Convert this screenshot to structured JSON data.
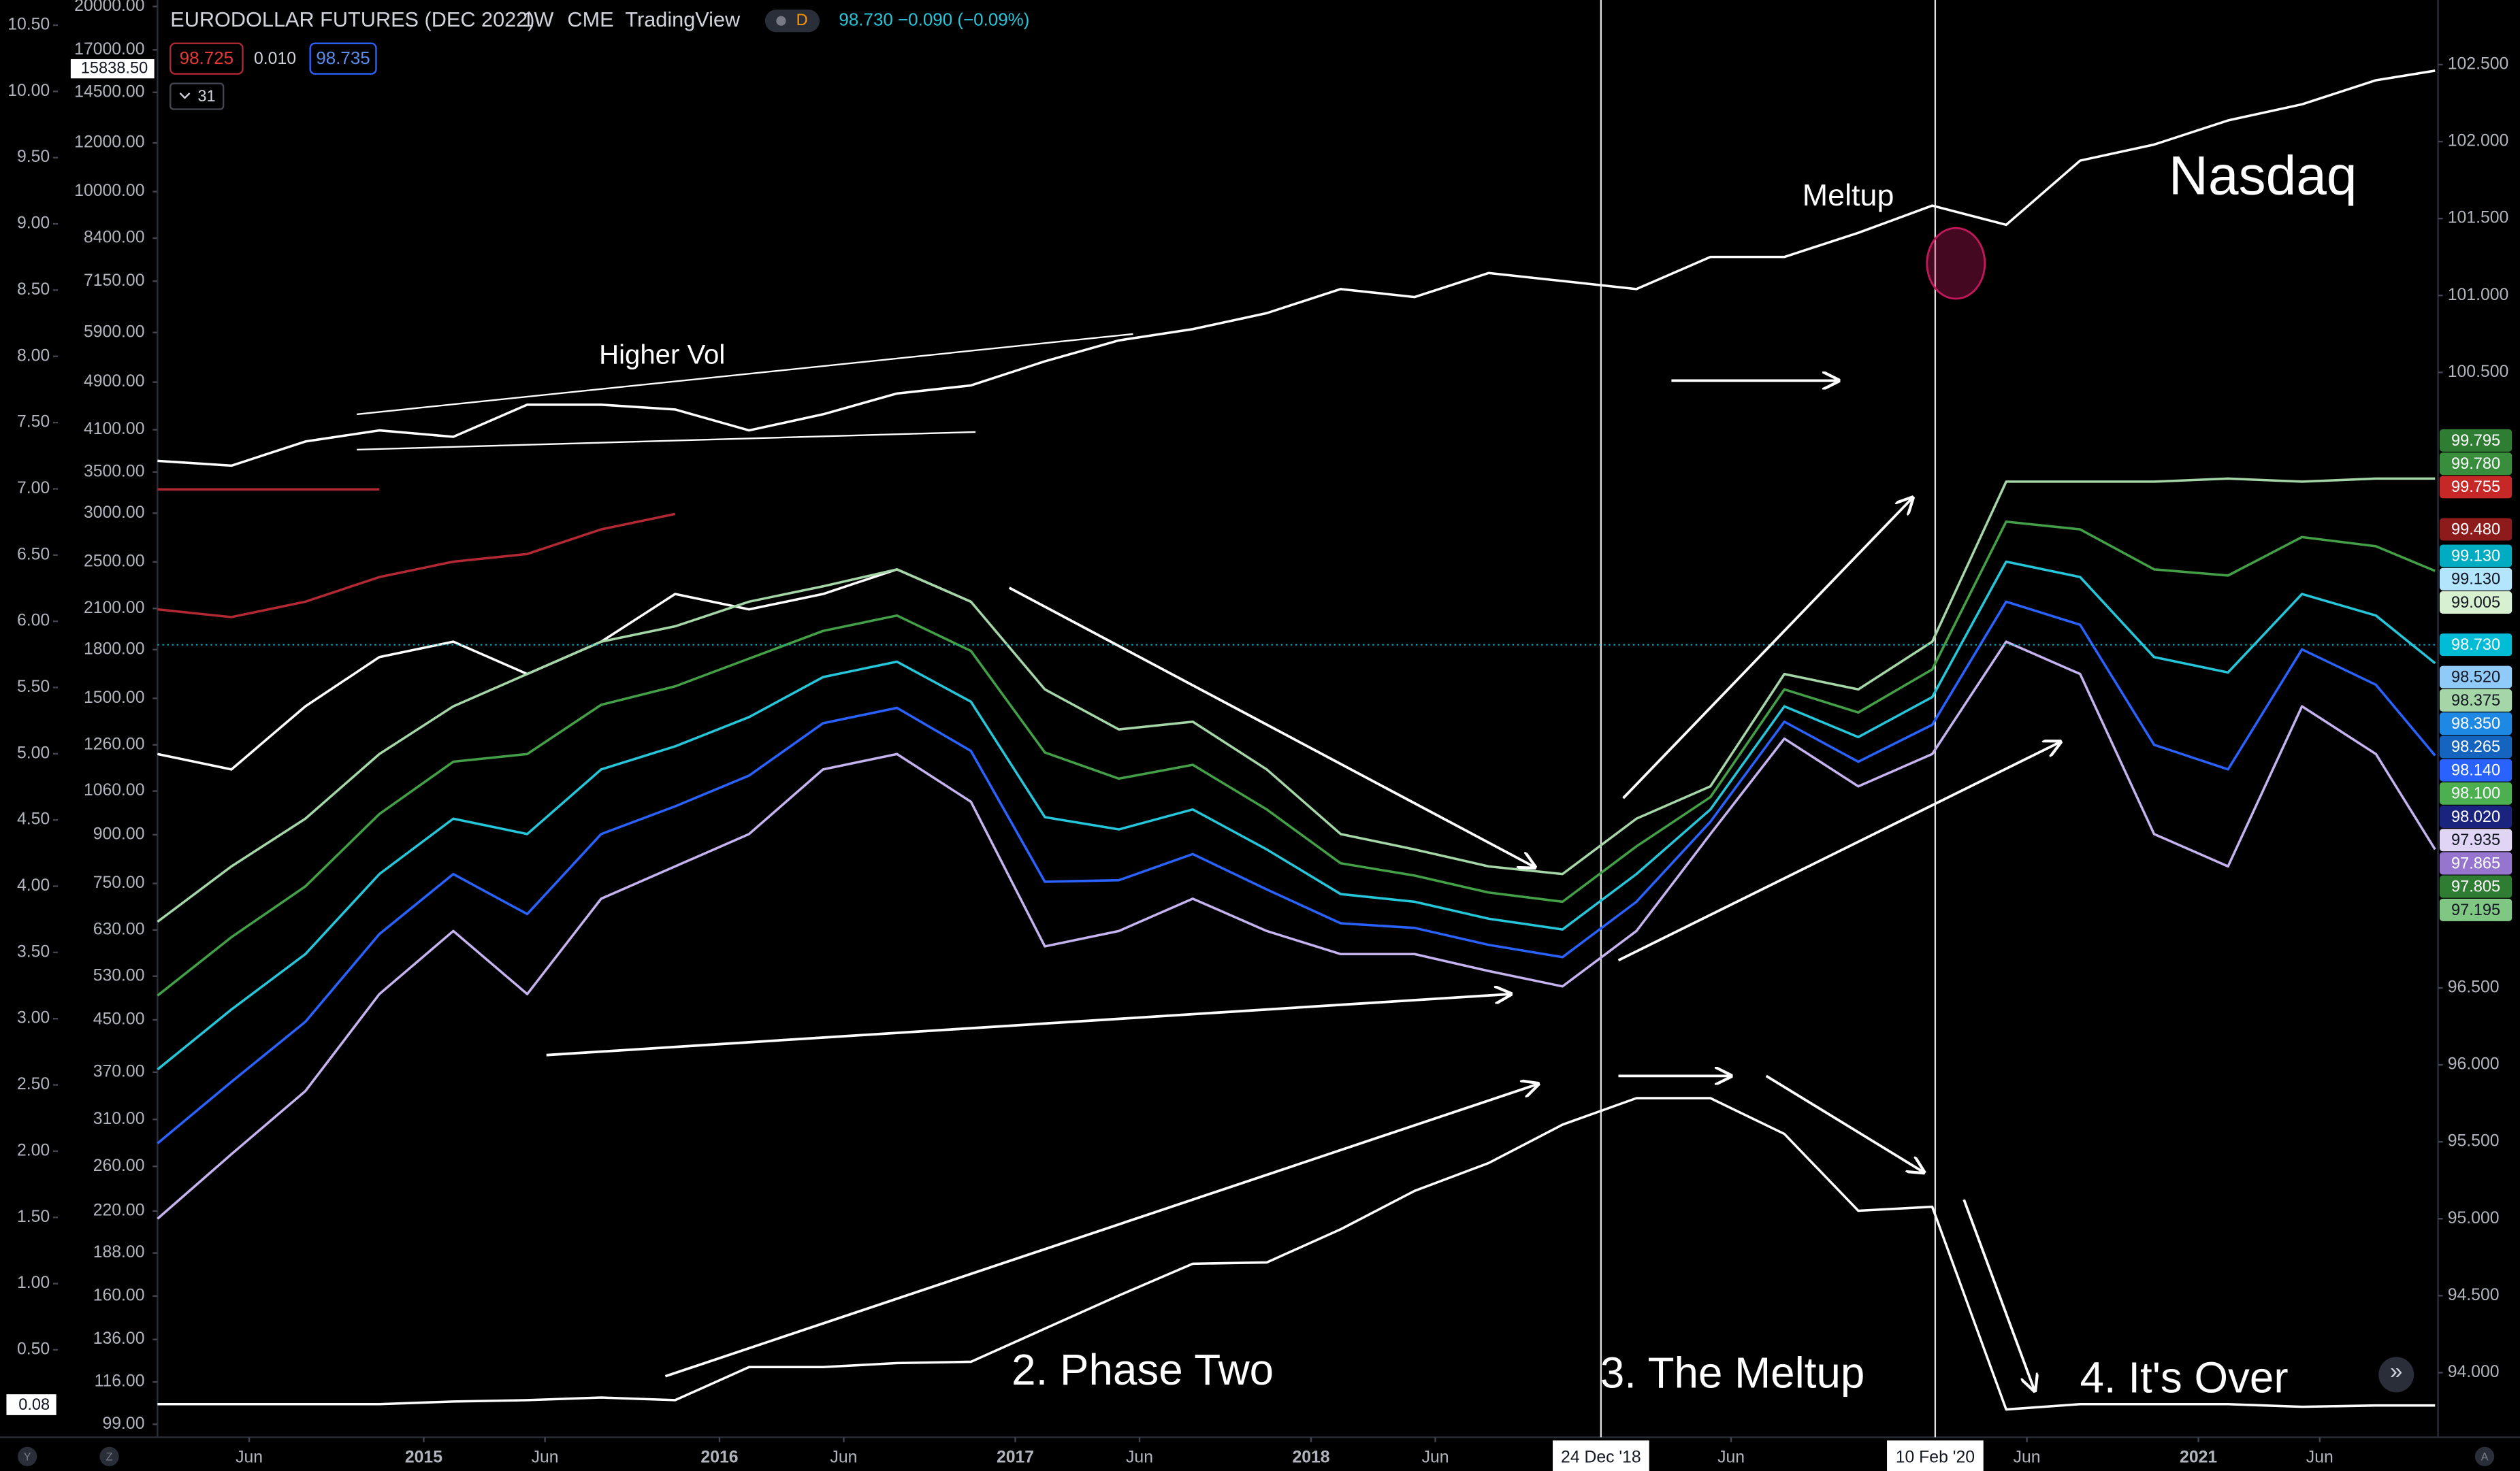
{
  "header": {
    "symbol": "EURODOLLAR FUTURES (DEC 2022)",
    "interval": "1W",
    "exchange": "CME",
    "source": "TradingView",
    "badge": "D",
    "quote": "98.730 −0.090 (−0.09%)",
    "bid": "98.725",
    "spread": "0.010",
    "ask": "98.735",
    "indicator_count": "31"
  },
  "annotations": {
    "higher_vol": "Higher Vol",
    "meltup": "Meltup",
    "nasdaq": "Nasdaq",
    "phase_two": "2. Phase Two",
    "the_meltup": "3. The Meltup",
    "its_over": "4. It's Over"
  },
  "ui": {
    "left_button": "Y",
    "zoom_button": "Z",
    "auto_button": "A",
    "scroll_button": "»"
  },
  "chart_data": {
    "type": "line",
    "x": [
      2014.1,
      2014.35,
      2014.6,
      2014.85,
      2015.1,
      2015.35,
      2015.6,
      2015.85,
      2016.1,
      2016.35,
      2016.6,
      2016.85,
      2017.1,
      2017.35,
      2017.6,
      2017.85,
      2018.1,
      2018.35,
      2018.6,
      2018.85,
      2019.1,
      2019.35,
      2019.6,
      2019.85,
      2020.1,
      2020.35,
      2020.6,
      2020.85,
      2021.1,
      2021.35,
      2021.6,
      2021.8
    ],
    "xlim": [
      2014.1,
      2021.81
    ],
    "xticks": [
      {
        "value": 2014.41,
        "label": "Jun"
      },
      2015,
      {
        "value": 2015.41,
        "label": "Jun"
      },
      2016,
      {
        "value": 2016.42,
        "label": "Jun"
      },
      2017,
      {
        "value": 2017.42,
        "label": "Jun"
      },
      2018,
      {
        "value": 2018.42,
        "label": "Jun"
      },
      {
        "value": 2019.42,
        "label": "Jun"
      },
      {
        "value": 2020.42,
        "label": "Jun"
      },
      2021,
      {
        "value": 2021.41,
        "label": "Jun"
      }
    ],
    "x_markers": [
      {
        "value": 2018.98,
        "label": "24 Dec '18"
      },
      {
        "value": 2020.11,
        "label": "10 Feb '20"
      }
    ],
    "ylim": [
      93.58,
      102.92
    ],
    "yticks": [
      {
        "value": 102.5,
        "label": "102.500"
      },
      {
        "value": 102,
        "label": "102.000"
      },
      {
        "value": 101.5,
        "label": "101.500"
      },
      {
        "value": 101,
        "label": "101.000"
      },
      {
        "value": 100.5,
        "label": "100.500"
      },
      {
        "value": 96.5,
        "label": "96.500"
      },
      {
        "value": 96,
        "label": "96.000"
      },
      {
        "value": 95.5,
        "label": "95.500"
      },
      {
        "value": 95,
        "label": "95.000"
      },
      {
        "value": 94.5,
        "label": "94.500"
      },
      {
        "value": 94,
        "label": "94.000"
      }
    ],
    "y2lim": [
      -0.16,
      10.69
    ],
    "y2ticks": [
      {
        "value": 10.5,
        "label": "10.50"
      },
      {
        "value": 10,
        "label": "10.00"
      },
      {
        "value": 9.5,
        "label": "9.50"
      },
      {
        "value": 9,
        "label": "9.00"
      },
      {
        "value": 8.5,
        "label": "8.50"
      },
      {
        "value": 8,
        "label": "8.00"
      },
      {
        "value": 7.5,
        "label": "7.50"
      },
      {
        "value": 7,
        "label": "7.00"
      },
      {
        "value": 6.5,
        "label": "6.50"
      },
      {
        "value": 6,
        "label": "6.00"
      },
      {
        "value": 5.5,
        "label": "5.50"
      },
      {
        "value": 5,
        "label": "5.00"
      },
      {
        "value": 4.5,
        "label": "4.50"
      },
      {
        "value": 4,
        "label": "4.00"
      },
      {
        "value": 3.5,
        "label": "3.50"
      },
      {
        "value": 3,
        "label": "3.00"
      },
      {
        "value": 2.5,
        "label": "2.50"
      },
      {
        "value": 2,
        "label": "2.00"
      },
      {
        "value": 1.5,
        "label": "1.50"
      },
      {
        "value": 1,
        "label": "1.00"
      },
      {
        "value": 0.5,
        "label": "0.50"
      }
    ],
    "y2_marker": {
      "value": 0.08,
      "label": "0.08"
    },
    "y3lim": [
      94.3,
      20490
    ],
    "y3scale": "log",
    "y3ticks": [
      {
        "value": 20000,
        "label": "20000.00"
      },
      {
        "value": 17000,
        "label": "17000.00"
      },
      {
        "value": 14500,
        "label": "14500.00"
      },
      {
        "value": 12000,
        "label": "12000.00"
      },
      {
        "value": 10000,
        "label": "10000.00"
      },
      {
        "value": 8400,
        "label": "8400.00"
      },
      {
        "value": 7150,
        "label": "7150.00"
      },
      {
        "value": 5900,
        "label": "5900.00"
      },
      {
        "value": 4900,
        "label": "4900.00"
      },
      {
        "value": 4100,
        "label": "4100.00"
      },
      {
        "value": 3500,
        "label": "3500.00"
      },
      {
        "value": 3000,
        "label": "3000.00"
      },
      {
        "value": 2500,
        "label": "2500.00"
      },
      {
        "value": 2100,
        "label": "2100.00"
      },
      {
        "value": 1800,
        "label": "1800.00"
      },
      {
        "value": 1500,
        "label": "1500.00"
      },
      {
        "value": 1260,
        "label": "1260.00"
      },
      {
        "value": 1060,
        "label": "1060.00"
      },
      {
        "value": 900,
        "label": "900.00"
      },
      {
        "value": 750,
        "label": "750.00"
      },
      {
        "value": 630,
        "label": "630.00"
      },
      {
        "value": 530,
        "label": "530.00"
      },
      {
        "value": 450,
        "label": "450.00"
      },
      {
        "value": 370,
        "label": "370.00"
      },
      {
        "value": 310,
        "label": "310.00"
      },
      {
        "value": 260,
        "label": "260.00"
      },
      {
        "value": 220,
        "label": "220.00"
      },
      {
        "value": 188,
        "label": "188.00"
      },
      {
        "value": 160,
        "label": "160.00"
      },
      {
        "value": 136,
        "label": "136.00"
      },
      {
        "value": 116,
        "label": "116.00"
      },
      {
        "value": 99,
        "label": "99.00"
      }
    ],
    "y3_marker": {
      "value": 15838.5,
      "label": "15838.50"
    },
    "grid": false,
    "series": [
      {
        "color": "#ffffff",
        "axis": "y3",
        "values": [
          3649,
          3584,
          3923,
          4090,
          3993,
          4503,
          4503,
          4423,
          4090,
          4344,
          4696,
          4840,
          5297,
          5728,
          5975,
          6344,
          6943,
          6738,
          7372,
          7155,
          6943,
          7830,
          7830,
          8569,
          9490,
          8831,
          11230,
          11925,
          13053,
          13866,
          15171,
          15726
        ]
      },
      {
        "color": "#ffffff",
        "values": [
          98.02,
          97.92,
          98.33,
          98.65,
          98.75,
          98.54,
          98.75,
          99.06,
          98.96,
          99.06,
          99.22,
          99.01,
          null,
          null,
          null,
          null,
          null,
          null,
          null,
          null,
          null,
          null,
          null,
          null,
          null,
          null,
          null,
          null,
          null,
          null,
          null,
          null
        ]
      },
      {
        "color": "#b22833",
        "values": [
          99.74,
          99.74,
          99.74,
          99.74,
          null,
          null,
          null,
          null,
          null,
          null,
          null,
          null,
          null,
          null,
          null,
          null,
          null,
          null,
          null,
          null,
          null,
          null,
          null,
          null,
          null,
          null,
          null,
          null,
          null,
          null,
          null,
          null
        ]
      },
      {
        "color": "#b22833",
        "values": [
          98.96,
          98.91,
          99.01,
          99.17,
          99.27,
          99.32,
          99.48,
          99.58,
          null,
          null,
          null,
          null,
          null,
          null,
          null,
          null,
          null,
          null,
          null,
          null,
          null,
          null,
          null,
          null,
          null,
          null,
          null,
          null,
          null,
          null,
          null,
          null
        ]
      },
      {
        "color": "#a5d6a7",
        "values": [
          96.93,
          97.29,
          97.6,
          98.02,
          98.33,
          98.54,
          98.75,
          98.85,
          99.01,
          99.11,
          99.22,
          99.01,
          98.44,
          98.18,
          98.23,
          97.92,
          97.5,
          97.4,
          97.29,
          97.24,
          97.6,
          97.81,
          98.54,
          98.44,
          98.75,
          99.79,
          99.79,
          99.79,
          99.81,
          99.79,
          99.81,
          99.81
        ]
      },
      {
        "color": "#43a047",
        "values": [
          96.45,
          96.83,
          97.16,
          97.63,
          97.97,
          98.02,
          98.34,
          98.46,
          98.64,
          98.82,
          98.92,
          98.69,
          98.03,
          97.86,
          97.95,
          97.66,
          97.31,
          97.23,
          97.12,
          97.06,
          97.42,
          97.74,
          98.44,
          98.29,
          98.57,
          99.53,
          99.48,
          99.22,
          99.18,
          99.43,
          99.37,
          99.21
        ]
      },
      {
        "color": "#26c6da",
        "values": [
          95.97,
          96.36,
          96.72,
          97.24,
          97.6,
          97.5,
          97.92,
          98.07,
          98.26,
          98.52,
          98.62,
          98.36,
          97.61,
          97.53,
          97.66,
          97.4,
          97.11,
          97.06,
          96.95,
          96.88,
          97.24,
          97.66,
          98.33,
          98.13,
          98.39,
          99.27,
          99.17,
          98.65,
          98.55,
          99.06,
          98.92,
          98.61
        ]
      },
      {
        "color": "#2962ff",
        "values": [
          95.49,
          95.89,
          96.28,
          96.85,
          97.24,
          96.98,
          97.5,
          97.68,
          97.88,
          98.22,
          98.32,
          98.04,
          97.19,
          97.2,
          97.37,
          97.14,
          96.92,
          96.89,
          96.78,
          96.7,
          97.06,
          97.58,
          98.23,
          97.97,
          98.21,
          99.01,
          98.86,
          98.08,
          97.92,
          98.7,
          98.47,
          98.01
        ]
      },
      {
        "color": "#c5b3f0",
        "values": [
          95.0,
          95.42,
          95.83,
          96.46,
          96.87,
          96.46,
          97.08,
          97.29,
          97.5,
          97.92,
          98.02,
          97.71,
          96.77,
          96.87,
          97.08,
          96.87,
          96.72,
          96.72,
          96.61,
          96.51,
          96.87,
          97.5,
          98.12,
          97.81,
          98.02,
          98.75,
          98.54,
          97.5,
          97.29,
          98.33,
          98.02,
          97.4
        ]
      },
      {
        "color": "#ffffff",
        "axis": "y2",
        "values": [
          0.09,
          0.09,
          0.09,
          0.09,
          0.11,
          0.12,
          0.14,
          0.12,
          0.37,
          0.37,
          0.4,
          0.41,
          0.66,
          0.91,
          1.15,
          1.16,
          1.41,
          1.7,
          1.91,
          2.2,
          2.4,
          2.4,
          2.13,
          1.55,
          1.58,
          0.05,
          0.09,
          0.09,
          0.09,
          0.07,
          0.08,
          0.08
        ]
      }
    ],
    "price_tags": [
      {
        "value": 99.795,
        "label": "99.795",
        "color": "#2e7d32"
      },
      {
        "value": 99.78,
        "label": "99.780",
        "color": "#388e3c"
      },
      {
        "value": 99.755,
        "label": "99.755",
        "color": "#c62828"
      },
      {
        "value": 99.48,
        "label": "99.480",
        "color": "#8e1b1b"
      },
      {
        "value": 99.13,
        "label": "99.130",
        "color": "#00acc1"
      },
      {
        "value": 99.13,
        "label": "99.130",
        "color": "#b3e5fc"
      },
      {
        "value": 99.005,
        "label": "99.005",
        "color": "#d7f0d0"
      },
      {
        "value": 98.73,
        "label": "98.730",
        "color": "#00bcd4",
        "dotted": true
      },
      {
        "value": 98.52,
        "label": "98.520",
        "color": "#90caf9"
      },
      {
        "value": 98.375,
        "label": "98.375",
        "color": "#a5d6a7"
      },
      {
        "value": 98.35,
        "label": "98.350",
        "color": "#1e88e5"
      },
      {
        "value": 98.265,
        "label": "98.265",
        "color": "#1565c0"
      },
      {
        "value": 98.14,
        "label": "98.140",
        "color": "#2962ff"
      },
      {
        "value": 98.1,
        "label": "98.100",
        "color": "#4caf50"
      },
      {
        "value": 98.02,
        "label": "98.020",
        "color": "#1a237e"
      },
      {
        "value": 97.935,
        "label": "97.935",
        "color": "#e1d5f5"
      },
      {
        "value": 97.865,
        "label": "97.865",
        "color": "#9575cd"
      },
      {
        "value": 97.805,
        "label": "97.805",
        "color": "#2e7d32"
      },
      {
        "value": 97.195,
        "label": "97.195",
        "color": "#81c784"
      }
    ]
  }
}
